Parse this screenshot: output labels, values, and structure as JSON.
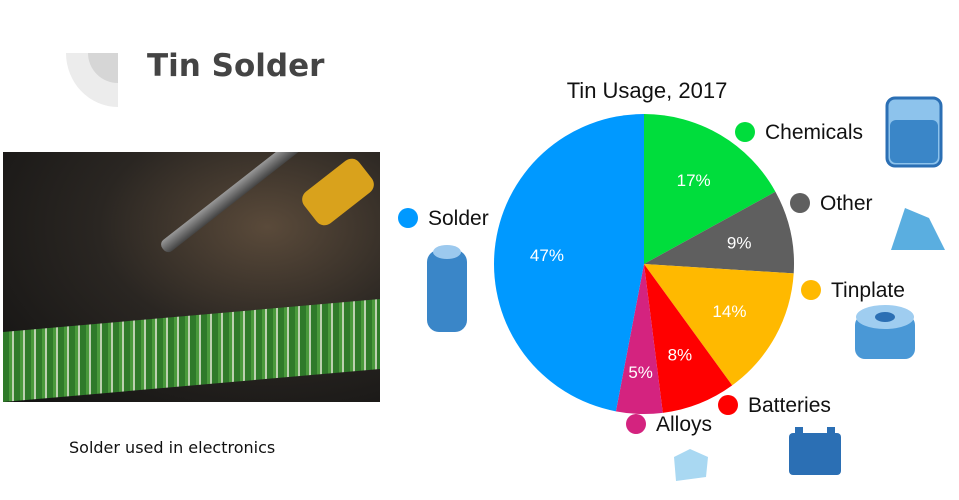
{
  "slide": {
    "title": "Tin Solder",
    "caption": "Solder used in electronics"
  },
  "chart_data": {
    "type": "pie",
    "title": "Tin Usage, 2017",
    "slices": [
      {
        "label": "Chemicals",
        "value": 17,
        "display": "17%",
        "color": "#00dd3c",
        "icon": "beaker-icon"
      },
      {
        "label": "Other",
        "value": 9,
        "display": "9%",
        "color": "#5f5f5f",
        "icon": "block-icon"
      },
      {
        "label": "Tinplate",
        "value": 14,
        "display": "14%",
        "color": "#ffb900",
        "icon": "ring-icon"
      },
      {
        "label": "Batteries",
        "value": 8,
        "display": "8%",
        "color": "#ff0000",
        "icon": "battery-icon"
      },
      {
        "label": "Alloys",
        "value": 5,
        "display": "5%",
        "color": "#d4237f",
        "icon": "cube-icon"
      },
      {
        "label": "Solder",
        "value": 47,
        "display": "47%",
        "color": "#0099ff",
        "icon": "spool-icon"
      }
    ],
    "start": "top",
    "direction": "clockwise",
    "legend": "around"
  }
}
